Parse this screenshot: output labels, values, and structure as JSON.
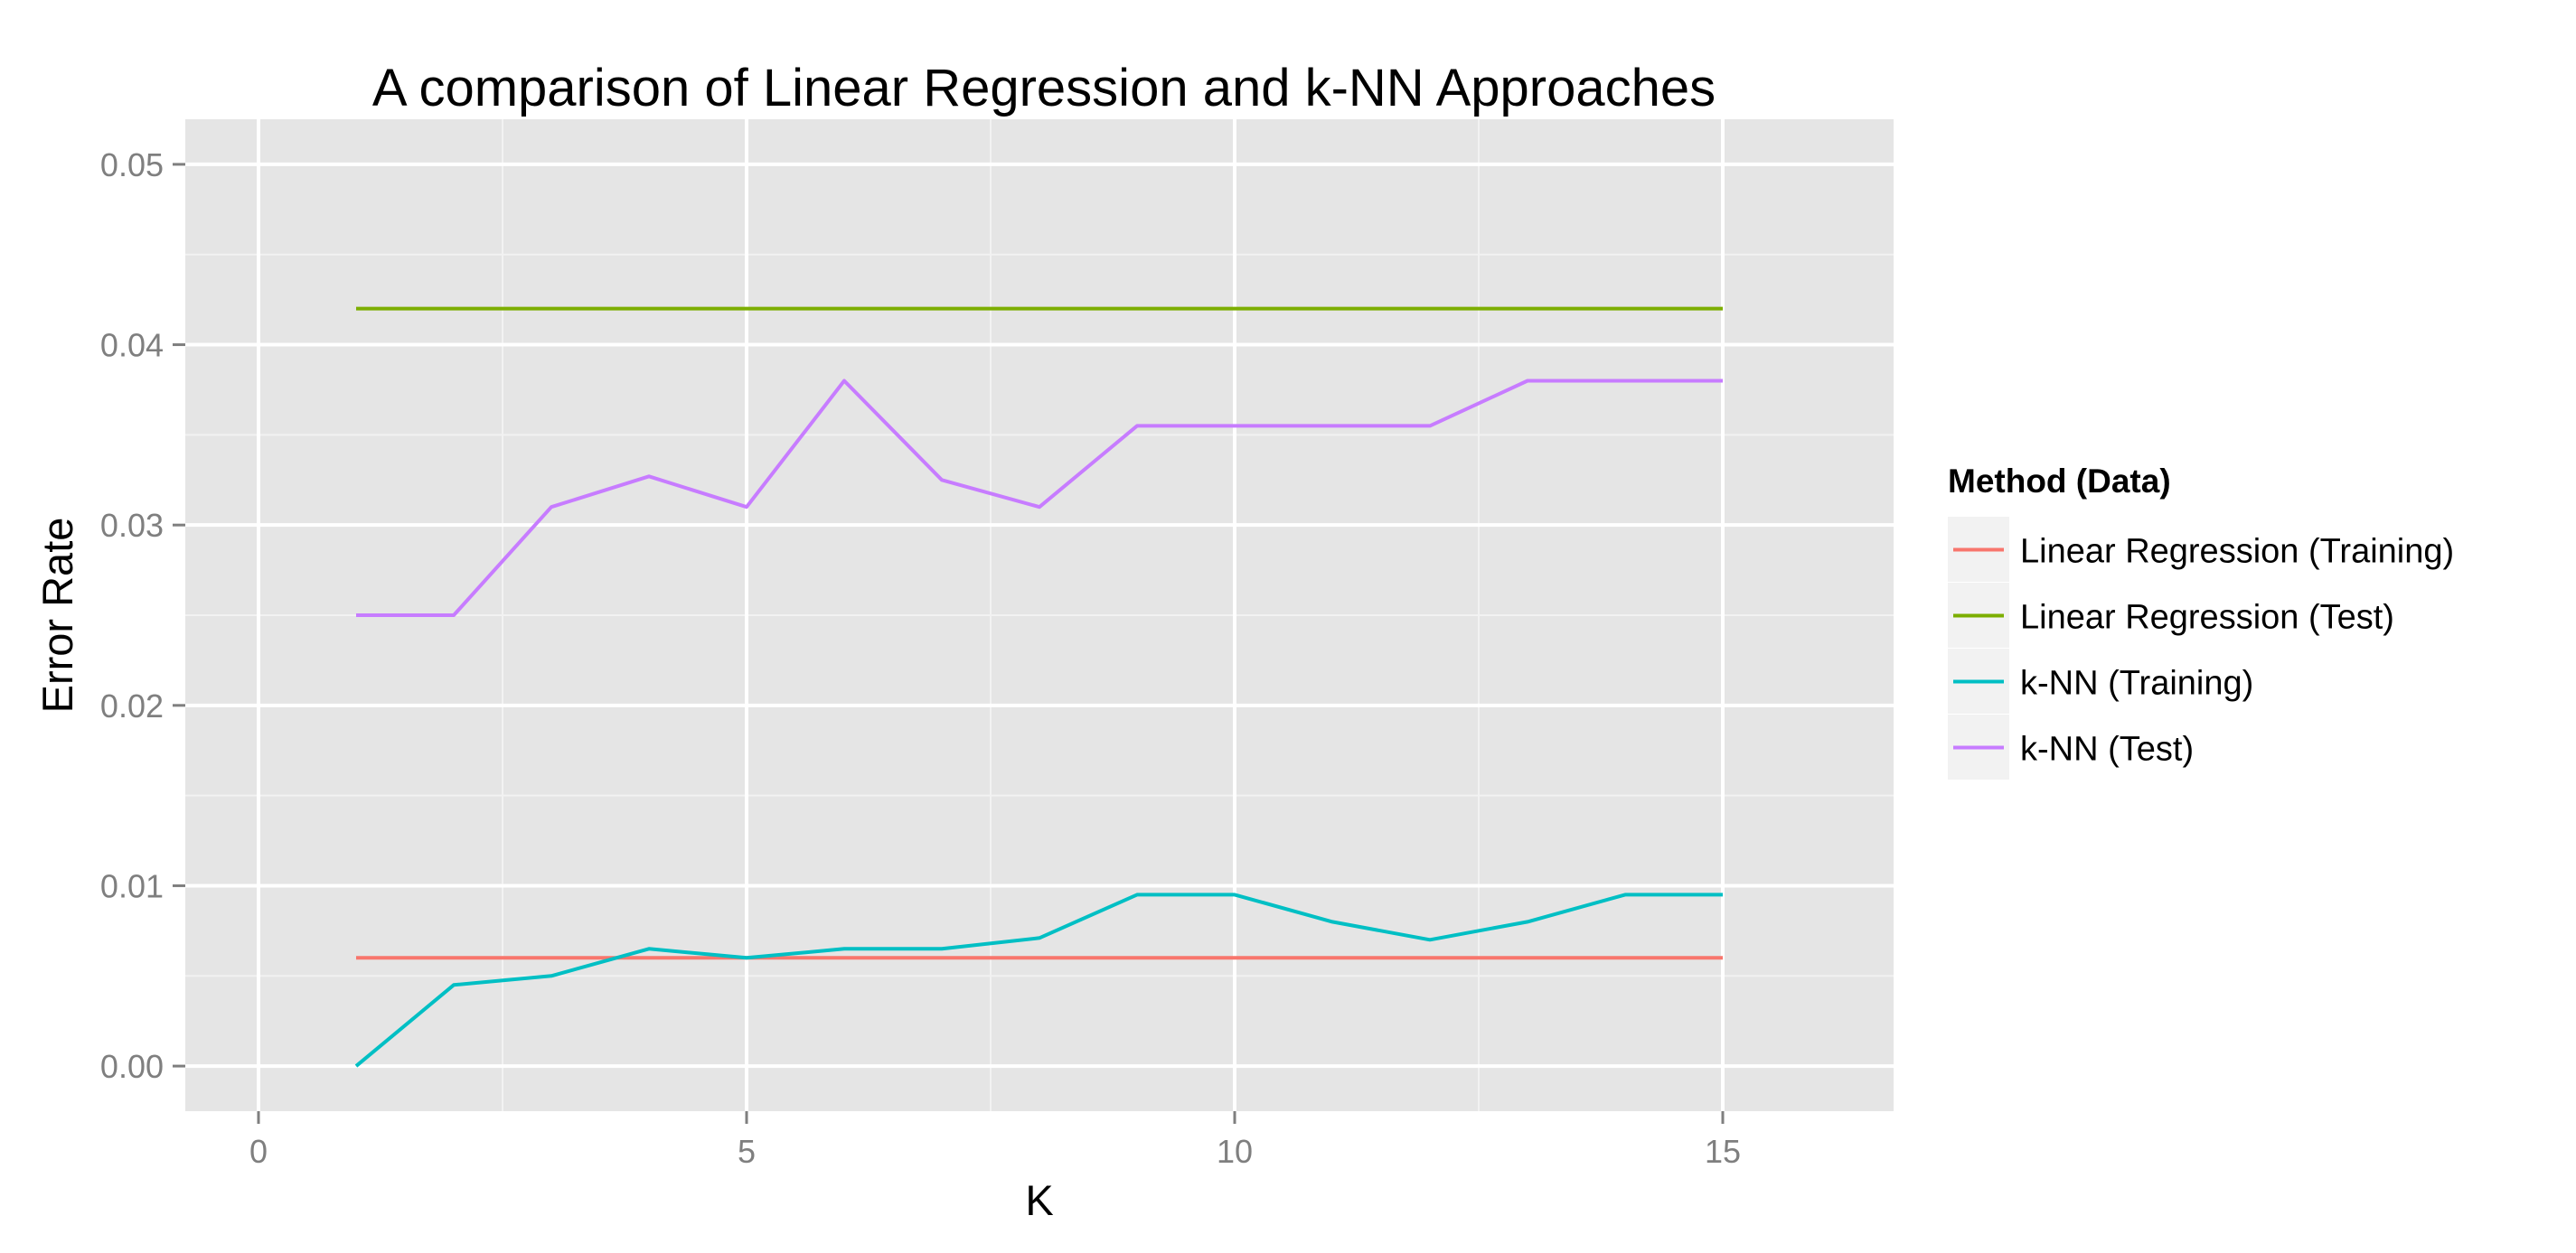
{
  "chart_data": {
    "type": "line",
    "title": "A comparison of Linear Regression and k-NN Approaches",
    "xlabel": "K",
    "ylabel": "Error Rate",
    "xlim": [
      -0.75,
      16.75
    ],
    "ylim": [
      -0.0025,
      0.0525
    ],
    "x_ticks": [
      0,
      5,
      10,
      15
    ],
    "x_tick_labels": [
      "0",
      "5",
      "10",
      "15"
    ],
    "y_ticks": [
      0,
      0.01,
      0.02,
      0.03,
      0.04,
      0.05
    ],
    "y_tick_labels": [
      "0.00",
      "0.01",
      "0.02",
      "0.03",
      "0.04",
      "0.05"
    ],
    "grid": true,
    "legend": {
      "title": "Method (Data)",
      "placement": "right"
    },
    "x": [
      1,
      2,
      3,
      4,
      5,
      6,
      7,
      8,
      9,
      10,
      11,
      12,
      13,
      14,
      15
    ],
    "series": [
      {
        "name": "Linear Regression (Training)",
        "color": "#F8766D",
        "values": [
          0.006,
          0.006,
          0.006,
          0.006,
          0.006,
          0.006,
          0.006,
          0.006,
          0.006,
          0.006,
          0.006,
          0.006,
          0.006,
          0.006,
          0.006
        ]
      },
      {
        "name": "Linear Regression (Test)",
        "color": "#7CAE00",
        "values": [
          0.042,
          0.042,
          0.042,
          0.042,
          0.042,
          0.042,
          0.042,
          0.042,
          0.042,
          0.042,
          0.042,
          0.042,
          0.042,
          0.042,
          0.042
        ]
      },
      {
        "name": "k-NN (Training)",
        "color": "#00BFC4",
        "values": [
          0.0,
          0.0045,
          0.005,
          0.0065,
          0.006,
          0.0065,
          0.0065,
          0.0071,
          0.0095,
          0.0095,
          0.008,
          0.007,
          0.008,
          0.0095,
          0.0095
        ]
      },
      {
        "name": "k-NN (Test)",
        "color": "#C77CFF",
        "values": [
          0.025,
          0.025,
          0.031,
          0.0327,
          0.031,
          0.038,
          0.0325,
          0.031,
          0.0355,
          0.0355,
          0.0355,
          0.0355,
          0.038,
          0.038,
          0.038
        ]
      }
    ]
  }
}
